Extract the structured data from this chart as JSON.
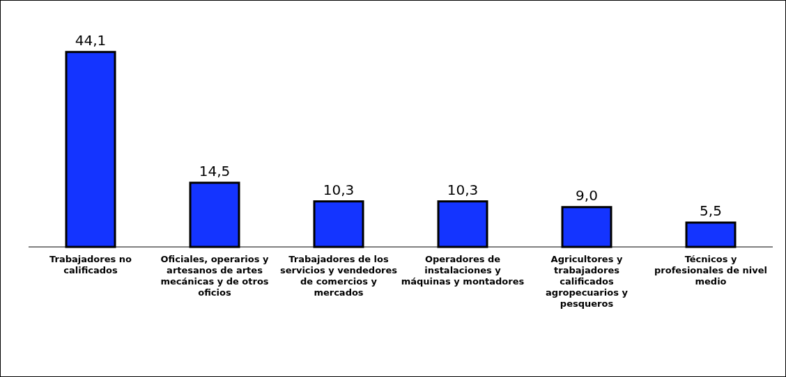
{
  "chart_data": {
    "type": "bar",
    "categories": [
      "Trabajadores no calificados",
      "Oficiales, operarios y artesanos de artes mecánicas y de otros oficios",
      "Trabajadores de los servicios y vendedores de comercios y mercados",
      "Operadores de instalaciones y máquinas y montadores",
      "Agricultores y trabajadores calificados agropecuarios y pesqueros",
      "Técnicos y profesionales de nivel medio"
    ],
    "values": [
      44.1,
      14.5,
      10.3,
      10.3,
      9.0,
      5.5
    ],
    "value_labels": [
      "44,1",
      "14,5",
      "10,3",
      "10,3",
      "9,0",
      "5,5"
    ],
    "color": "#1434ff"
  }
}
